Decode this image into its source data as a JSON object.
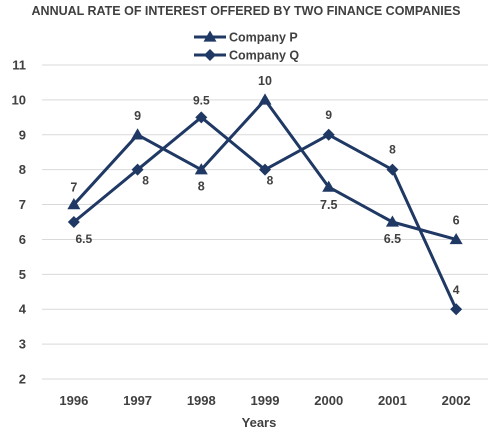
{
  "chart_data": {
    "type": "line",
    "title": "ANNUAL RATE OF INTEREST OFFERED BY TWO FINANCE COMPANIES",
    "xlabel": "Years",
    "ylabel": "",
    "categories": [
      "1996",
      "1997",
      "1998",
      "1999",
      "2000",
      "2001",
      "2002"
    ],
    "ylim": [
      2,
      11
    ],
    "yticks": [
      2,
      3,
      4,
      5,
      6,
      7,
      8,
      9,
      10,
      11
    ],
    "grid": true,
    "legend_position": "top-center",
    "series": [
      {
        "name": "Company P",
        "marker": "triangle",
        "color": "#1f3864",
        "values": [
          7,
          9,
          8,
          10,
          7.5,
          6.5,
          6
        ],
        "labels": [
          "7",
          "9",
          "8",
          "10",
          "7.5",
          "6.5",
          "6"
        ]
      },
      {
        "name": "Company Q",
        "marker": "diamond",
        "color": "#1f3864",
        "values": [
          6.5,
          8,
          9.5,
          8,
          9,
          8,
          4
        ],
        "labels": [
          "6.5",
          "8",
          "9.5",
          "8",
          "9",
          "8",
          "4"
        ]
      }
    ]
  }
}
